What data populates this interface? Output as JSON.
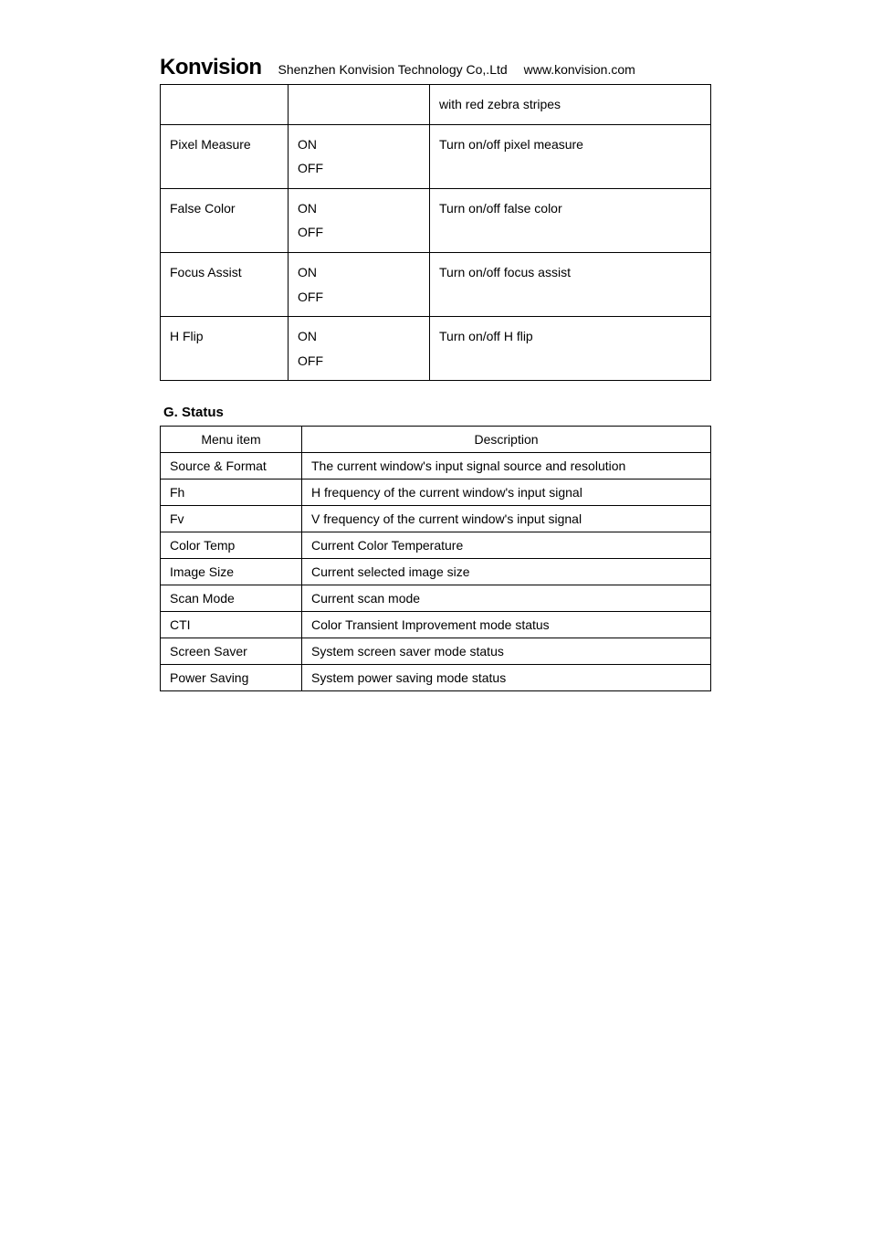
{
  "header": {
    "logo": "Konvision",
    "company": "Shenzhen Konvision Technology Co,.Ltd",
    "url": "www.konvision.com"
  },
  "table1": {
    "rows": [
      {
        "menu": "",
        "options": "",
        "desc": "with red zebra stripes"
      },
      {
        "menu": "Pixel Measure",
        "options": "ON\nOFF",
        "desc": "Turn on/off pixel measure"
      },
      {
        "menu": "False Color",
        "options": "ON\nOFF",
        "desc": "Turn on/off false color"
      },
      {
        "menu": "Focus Assist",
        "options": "ON\nOFF",
        "desc": "Turn on/off focus assist"
      },
      {
        "menu": "H Flip",
        "options": "ON\nOFF",
        "desc": "Turn on/off H flip"
      }
    ]
  },
  "section_title": "G. Status",
  "table2": {
    "headers": [
      "Menu item",
      "Description"
    ],
    "rows": [
      {
        "menu": "Source & Format",
        "desc": "The current window's input signal source and resolution"
      },
      {
        "menu": "Fh",
        "desc": "H frequency of the current window's input signal"
      },
      {
        "menu": "Fv",
        "desc": "V frequency of the current window's input signal"
      },
      {
        "menu": "Color Temp",
        "desc": "Current Color Temperature"
      },
      {
        "menu": "Image Size",
        "desc": "Current selected image size"
      },
      {
        "menu": "Scan Mode",
        "desc": "Current scan mode"
      },
      {
        "menu": "CTI",
        "desc": "Color Transient Improvement mode status"
      },
      {
        "menu": "Screen Saver",
        "desc": "System screen saver mode status"
      },
      {
        "menu": "Power Saving",
        "desc": "System power saving mode status"
      }
    ]
  }
}
